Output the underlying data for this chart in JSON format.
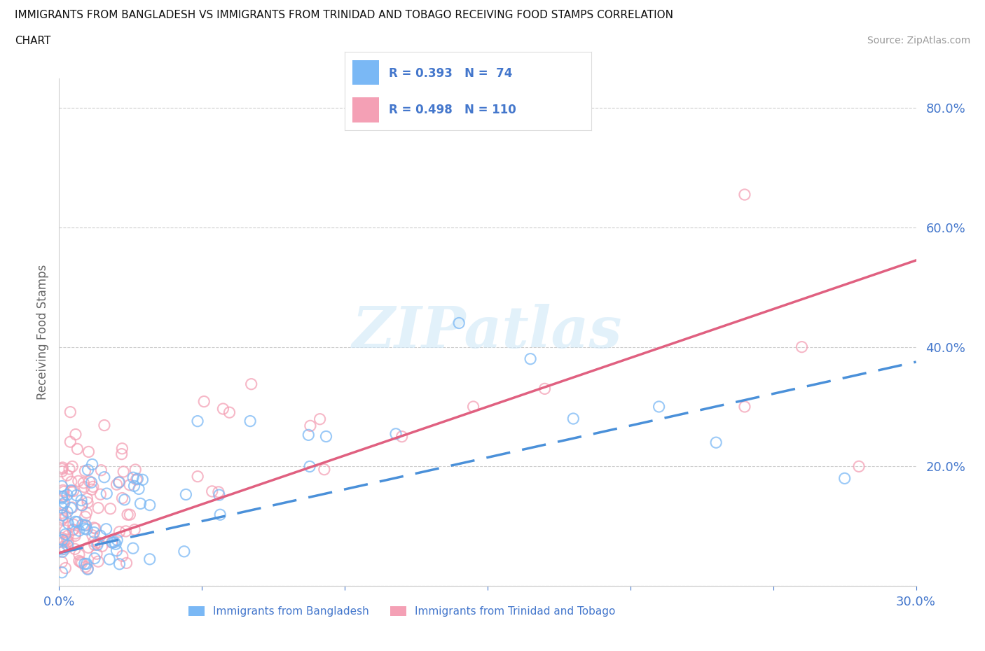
{
  "title_line1": "IMMIGRANTS FROM BANGLADESH VS IMMIGRANTS FROM TRINIDAD AND TOBAGO RECEIVING FOOD STAMPS CORRELATION",
  "title_line2": "CHART",
  "source": "Source: ZipAtlas.com",
  "ylabel": "Receiving Food Stamps",
  "xlim": [
    0.0,
    0.3
  ],
  "ylim": [
    0.0,
    0.85
  ],
  "xticks": [
    0.0,
    0.05,
    0.1,
    0.15,
    0.2,
    0.25,
    0.3
  ],
  "xticklabels": [
    "0.0%",
    "",
    "",
    "",
    "",
    "",
    "30.0%"
  ],
  "yticks": [
    0.0,
    0.2,
    0.4,
    0.6,
    0.8
  ],
  "yticklabels": [
    "",
    "20.0%",
    "40.0%",
    "60.0%",
    "80.0%"
  ],
  "grid_color": "#cccccc",
  "watermark": "ZIPatlas",
  "legend_r1": "R = 0.393",
  "legend_n1": "N =  74",
  "legend_r2": "R = 0.498",
  "legend_n2": "N = 110",
  "color_bangladesh": "#7ab8f5",
  "color_trinidad": "#f4a0b5",
  "color_trend_bangladesh": "#4a90d9",
  "color_trend_trinidad": "#e06080",
  "color_text": "#4477cc",
  "trend_b_x0": 0.0,
  "trend_b_y0": 0.055,
  "trend_b_x1": 0.3,
  "trend_b_y1": 0.375,
  "trend_t_x0": 0.0,
  "trend_t_y0": 0.055,
  "trend_t_x1": 0.3,
  "trend_t_y1": 0.545,
  "background_color": "#ffffff"
}
